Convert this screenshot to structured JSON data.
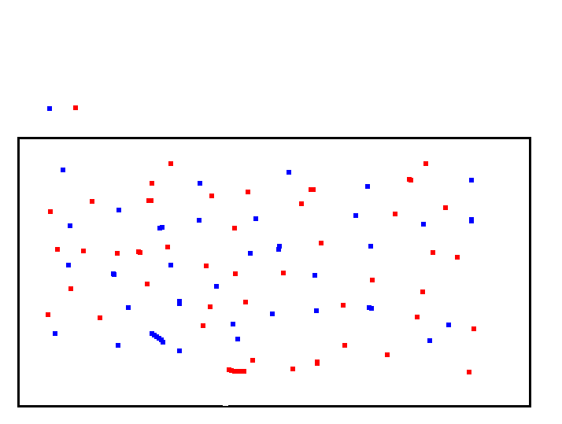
{
  "colors": {
    "series_a": "#0000ff",
    "series_b": "#ff0000",
    "frame": "#000000"
  },
  "chart_data": {
    "type": "scatter",
    "title": "",
    "xlabel": "",
    "ylabel": "",
    "xlim": [
      0,
      647
    ],
    "ylim": [
      0,
      338
    ],
    "grid": false,
    "legend": "top-left",
    "series": [
      {
        "color": "#0000ff",
        "points": [
          [
            55,
            299
          ],
          [
            126,
            248
          ],
          [
            64,
            228
          ],
          [
            178,
            225
          ],
          [
            181,
            226
          ],
          [
            62,
            178
          ],
          [
            119,
            167
          ],
          [
            120,
            166
          ],
          [
            192,
            178
          ],
          [
            229,
            282
          ],
          [
            228,
            235
          ],
          [
            300,
            237
          ],
          [
            342,
            296
          ],
          [
            293,
            193
          ],
          [
            330,
            202
          ],
          [
            329,
            198
          ],
          [
            375,
            165
          ],
          [
            250,
            151
          ],
          [
            203,
            132
          ],
          [
            203,
            129
          ],
          [
            138,
            124
          ],
          [
            321,
            116
          ],
          [
            377,
            120
          ],
          [
            271,
            103
          ],
          [
            277,
            84
          ],
          [
            203,
            69
          ],
          [
            125,
            76
          ],
          [
            45,
            91
          ],
          [
            442,
            278
          ],
          [
            427,
            241
          ],
          [
            446,
            202
          ],
          [
            444,
            124
          ],
          [
            447,
            123
          ],
          [
            513,
            230
          ],
          [
            574,
            286
          ],
          [
            574,
            236
          ],
          [
            574,
            234
          ],
          [
            545,
            102
          ],
          [
            521,
            82
          ],
          [
            168,
            91
          ],
          [
            171,
            89
          ],
          [
            174,
            87
          ],
          [
            177,
            85
          ],
          [
            180,
            83
          ],
          [
            182,
            80
          ]
        ]
      },
      {
        "color": "#ff0000",
        "points": [
          [
            192,
            307
          ],
          [
            168,
            282
          ],
          [
            164,
            260
          ],
          [
            167,
            260
          ],
          [
            92,
            259
          ],
          [
            39,
            246
          ],
          [
            244,
            266
          ],
          [
            290,
            271
          ],
          [
            273,
            225
          ],
          [
            370,
            274
          ],
          [
            373,
            274
          ],
          [
            358,
            256
          ],
          [
            48,
            198
          ],
          [
            81,
            196
          ],
          [
            124,
            193
          ],
          [
            151,
            195
          ],
          [
            153,
            194
          ],
          [
            188,
            201
          ],
          [
            237,
            177
          ],
          [
            274,
            167
          ],
          [
            335,
            168
          ],
          [
            383,
            206
          ],
          [
            162,
            154
          ],
          [
            65,
            148
          ],
          [
            36,
            115
          ],
          [
            102,
            111
          ],
          [
            242,
            125
          ],
          [
            287,
            131
          ],
          [
            233,
            101
          ],
          [
            411,
            127
          ],
          [
            448,
            159
          ],
          [
            477,
            243
          ],
          [
            516,
            307
          ],
          [
            495,
            287
          ],
          [
            497,
            286
          ],
          [
            541,
            251
          ],
          [
            525,
            194
          ],
          [
            556,
            188
          ],
          [
            512,
            144
          ],
          [
            505,
            112
          ],
          [
            577,
            97
          ],
          [
            413,
            76
          ],
          [
            467,
            64
          ],
          [
            378,
            55
          ],
          [
            378,
            53
          ],
          [
            347,
            46
          ],
          [
            296,
            57
          ],
          [
            571,
            42
          ],
          [
            266,
            45
          ],
          [
            269,
            44
          ],
          [
            273,
            43
          ],
          [
            277,
            43
          ],
          [
            281,
            43
          ],
          [
            285,
            43
          ]
        ]
      }
    ]
  }
}
